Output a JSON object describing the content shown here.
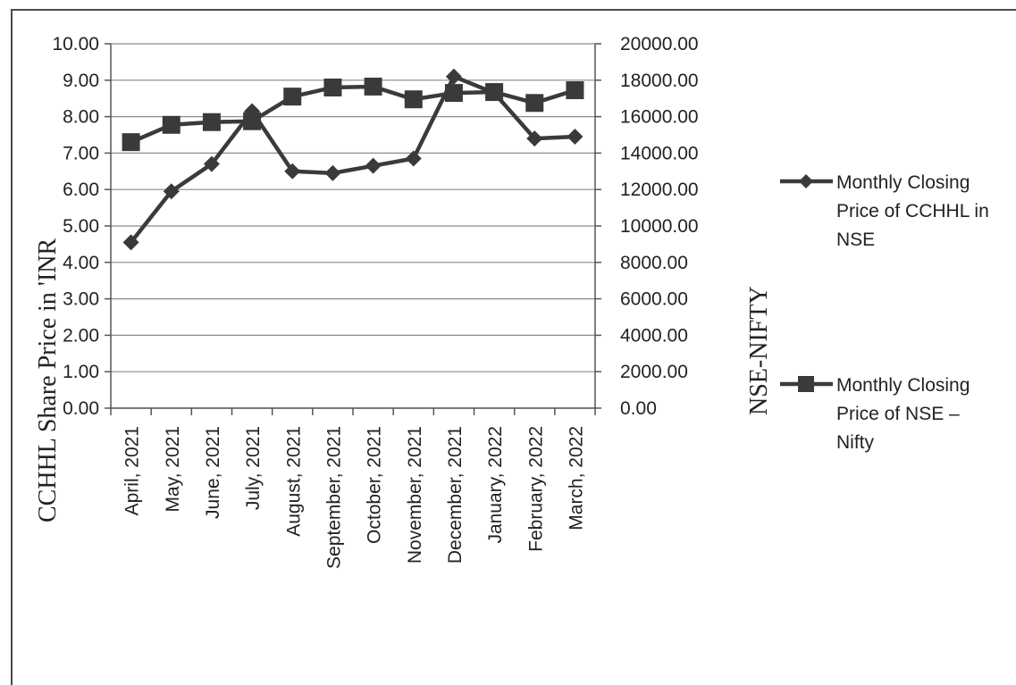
{
  "chart_data": {
    "type": "line",
    "categories": [
      "April, 2021",
      "May, 2021",
      "June, 2021",
      "July, 2021",
      "August, 2021",
      "September, 2021",
      "October, 2021",
      "November, 2021",
      "December, 2021",
      "January, 2022",
      "February, 2022",
      "March, 2022"
    ],
    "series": [
      {
        "name": "Monthly Closing Price of CCHHL in NSE",
        "axis": "left",
        "marker": "diamond",
        "values": [
          4.55,
          5.95,
          6.7,
          8.15,
          6.5,
          6.45,
          6.65,
          6.85,
          9.1,
          8.65,
          7.4,
          7.45
        ]
      },
      {
        "name": "Monthly Closing Price of NSE – Nifty",
        "axis": "right",
        "marker": "square",
        "values": [
          14600,
          15550,
          15700,
          15750,
          17100,
          17600,
          17650,
          16950,
          17300,
          17350,
          16750,
          17450
        ]
      }
    ],
    "ylabel": "CCHHL Share Price in 'INR",
    "y2label": "NSE-NIFTY",
    "ylim": [
      0,
      10
    ],
    "y2lim": [
      0,
      20000
    ],
    "yticks": [
      "0.00",
      "1.00",
      "2.00",
      "3.00",
      "4.00",
      "5.00",
      "6.00",
      "7.00",
      "8.00",
      "9.00",
      "10.00"
    ],
    "y2ticks": [
      "0.00",
      "2000.00",
      "4000.00",
      "6000.00",
      "8000.00",
      "10000.00",
      "12000.00",
      "14000.00",
      "16000.00",
      "18000.00",
      "20000.00"
    ],
    "legend": {
      "placement": "right",
      "entries": [
        [
          "Monthly Closing",
          "Price of CCHHL in",
          "NSE"
        ],
        [
          "Monthly Closing",
          "Price of NSE –",
          "Nifty"
        ]
      ]
    },
    "grid": true,
    "line_color": "#3a3a3a"
  }
}
